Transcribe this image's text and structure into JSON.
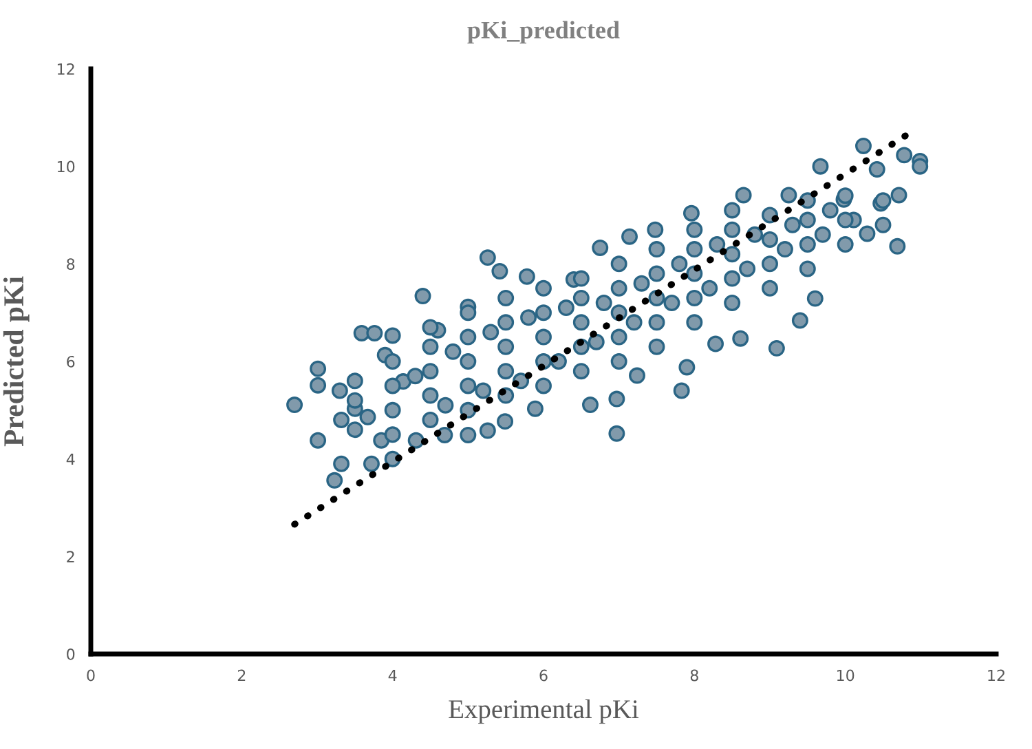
{
  "chart_data": {
    "type": "scatter",
    "title": "pKi_predicted",
    "xlabel": "Experimental pKi",
    "ylabel": "Predicted pKi",
    "xlim": [
      0,
      12
    ],
    "ylim": [
      0,
      12
    ],
    "xticks": [
      0,
      2,
      4,
      6,
      8,
      10,
      12
    ],
    "yticks": [
      0,
      2,
      4,
      6,
      8,
      10,
      12
    ],
    "grid": false,
    "legend": false,
    "series": [
      {
        "color": "#819aab",
        "marker": "circle",
        "x": [
          2.7,
          3.01,
          3.01,
          3.01,
          3.23,
          3.32,
          3.3,
          3.32,
          3.59,
          3.76,
          4.0,
          3.72,
          3.5,
          4.0,
          3.85,
          3.9,
          4.4,
          4.31,
          4.69,
          5.0,
          5.26,
          5.49,
          5.26,
          5.42,
          5.78,
          5.89,
          6.62,
          6.97,
          6.97,
          4.6,
          5.0,
          4.14,
          3.67,
          10.24,
          10.78,
          10.99,
          10.99,
          10.69,
          9.67,
          10.42,
          10.71,
          10.47,
          10.29,
          9.6,
          9.4,
          9.09,
          8.61,
          8.28,
          7.83,
          7.96,
          8.65,
          9.25,
          7.14,
          6.75,
          7.48,
          6.4,
          9.98,
          10.11,
          7.9,
          7.24,
          3.5,
          3.5,
          3.5,
          4.0,
          4.0,
          4.0,
          4.0,
          4.5,
          4.5,
          4.5,
          4.5,
          4.5,
          5.0,
          5.0,
          5.0,
          5.0,
          5.0,
          5.5,
          5.5,
          5.5,
          5.5,
          5.5,
          6.0,
          6.0,
          6.0,
          6.0,
          6.0,
          6.5,
          6.5,
          6.5,
          6.5,
          6.5,
          7.0,
          7.0,
          7.0,
          7.0,
          7.0,
          7.5,
          7.5,
          7.5,
          7.5,
          7.5,
          8.0,
          8.0,
          8.0,
          8.0,
          8.0,
          8.5,
          8.5,
          8.5,
          8.5,
          8.5,
          9.0,
          9.0,
          9.0,
          9.0,
          9.5,
          9.5,
          9.5,
          9.5,
          10.0,
          10.0,
          10.0,
          10.5,
          10.5,
          4.3,
          4.8,
          5.3,
          5.8,
          6.3,
          6.8,
          7.3,
          7.8,
          8.3,
          8.8,
          9.3,
          9.8,
          4.7,
          5.2,
          5.7,
          6.2,
          6.7,
          7.2,
          7.7,
          8.2,
          8.7,
          9.2,
          9.7
        ],
        "values": [
          5.11,
          5.85,
          5.51,
          4.38,
          3.56,
          3.9,
          5.4,
          4.8,
          6.58,
          6.58,
          6.53,
          3.9,
          5.03,
          4.0,
          4.38,
          6.13,
          7.34,
          4.38,
          4.49,
          4.49,
          4.58,
          4.77,
          8.13,
          7.85,
          7.74,
          5.03,
          5.11,
          4.52,
          5.23,
          6.64,
          7.12,
          5.59,
          4.86,
          10.42,
          10.23,
          10.11,
          10.0,
          8.36,
          10.0,
          9.94,
          9.41,
          9.24,
          8.62,
          7.29,
          6.84,
          6.27,
          6.47,
          6.36,
          5.4,
          9.04,
          9.41,
          9.41,
          8.56,
          8.33,
          8.7,
          7.68,
          9.32,
          8.9,
          5.88,
          5.71,
          4.6,
          5.2,
          5.6,
          4.5,
          5.0,
          5.5,
          6.0,
          4.8,
          5.3,
          5.8,
          6.3,
          6.7,
          5.0,
          5.5,
          6.0,
          6.5,
          7.0,
          5.3,
          5.8,
          6.3,
          6.8,
          7.3,
          5.5,
          6.0,
          6.5,
          7.0,
          7.5,
          5.8,
          6.3,
          6.8,
          7.3,
          7.7,
          6.0,
          6.5,
          7.0,
          7.5,
          8.0,
          6.3,
          6.8,
          7.3,
          7.8,
          8.3,
          6.8,
          7.3,
          7.8,
          8.3,
          8.7,
          7.2,
          7.7,
          8.2,
          8.7,
          9.1,
          7.5,
          8.0,
          8.5,
          9.0,
          7.9,
          8.4,
          8.9,
          9.3,
          8.4,
          8.9,
          9.4,
          8.8,
          9.3,
          5.7,
          6.2,
          6.6,
          6.9,
          7.1,
          7.2,
          7.6,
          8.0,
          8.4,
          8.6,
          8.8,
          9.1,
          5.1,
          5.4,
          5.6,
          6.0,
          6.4,
          6.8,
          7.2,
          7.5,
          7.9,
          8.3,
          8.6
        ]
      },
      {
        "type": "line",
        "color": "#000000",
        "line_style": "dotted",
        "marker": "none",
        "x": [
          2.7,
          10.88
        ],
        "values": [
          2.66,
          10.71
        ]
      }
    ]
  }
}
